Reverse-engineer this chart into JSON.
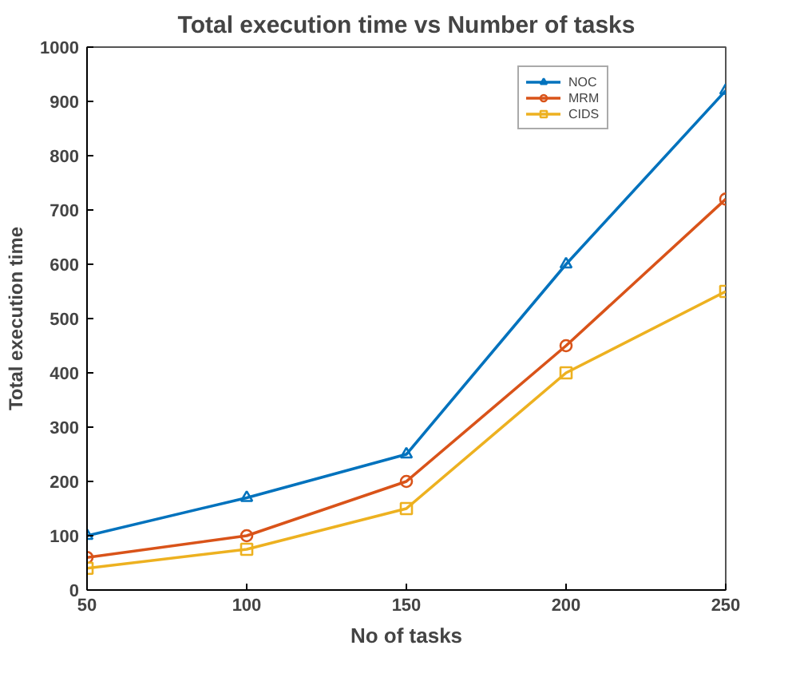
{
  "chart_data": {
    "type": "line",
    "title": "Total execution time vs Number of tasks",
    "xlabel": "No of tasks",
    "ylabel": "Total execution time",
    "x": [
      50,
      100,
      150,
      200,
      250
    ],
    "xlim": [
      50,
      250
    ],
    "xticks": [
      50,
      100,
      150,
      200,
      250
    ],
    "ylim": [
      0,
      1000
    ],
    "yticks": [
      0,
      100,
      200,
      300,
      400,
      500,
      600,
      700,
      800,
      900,
      1000
    ],
    "series": [
      {
        "name": "NOC",
        "color": "#0072bd",
        "values": [
          100,
          170,
          250,
          600,
          920
        ],
        "marker": "triangle"
      },
      {
        "name": "MRM",
        "color": "#d95319",
        "values": [
          60,
          100,
          200,
          450,
          720
        ],
        "marker": "circle"
      },
      {
        "name": "CIDS",
        "color": "#edb120",
        "values": [
          40,
          75,
          150,
          400,
          550
        ],
        "marker": "square"
      }
    ],
    "legend": "top right",
    "grid": false,
    "line_style": "solid"
  }
}
